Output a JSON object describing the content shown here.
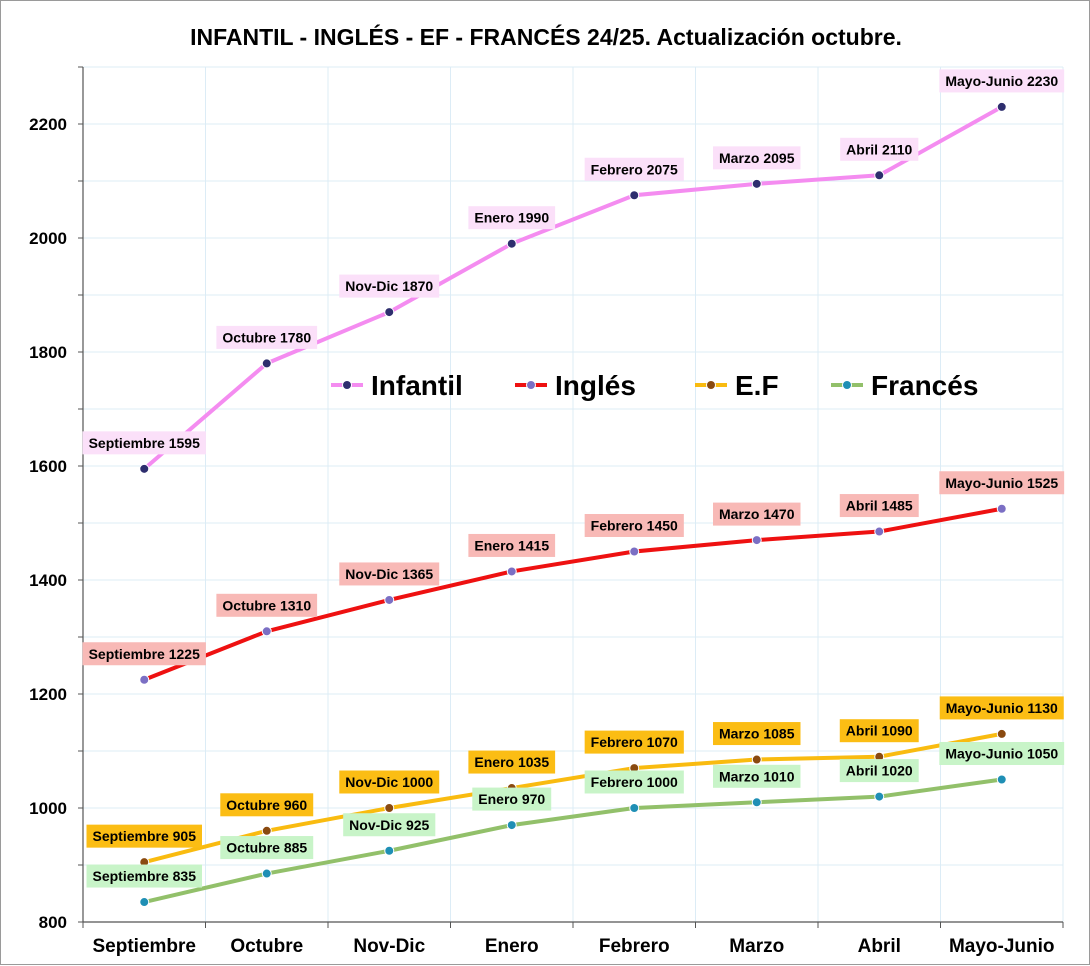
{
  "chart_data": {
    "type": "line",
    "title": "INFANTIL - INGLÉS - EF - FRANCÉS 24/25. Actualización octubre.",
    "xlabel": "",
    "ylabel": "",
    "categories": [
      "Septiembre",
      "Octubre",
      "Nov-Dic",
      "Enero",
      "Febrero",
      "Marzo",
      "Abril",
      "Mayo-Junio"
    ],
    "ylim": [
      800,
      2300
    ],
    "yticks": [
      800,
      1000,
      1200,
      1400,
      1600,
      1800,
      2000,
      2200
    ],
    "grid": true,
    "legend_position": "center",
    "series": [
      {
        "name": "Infantil",
        "values": [
          1595,
          1780,
          1870,
          1990,
          2075,
          2095,
          2110,
          2230
        ],
        "labels": [
          "Septiembre 1595",
          "Octubre 1780",
          "Nov-Dic 1870",
          "Enero 1990",
          "Febrero 2075",
          "Marzo 2095",
          "Abril 2110",
          "Mayo-Junio 2230"
        ],
        "line_color": "#f48cf0",
        "label_bg": "#fbe0f9",
        "marker_color": "#2e2e6e"
      },
      {
        "name": "Inglés",
        "values": [
          1225,
          1310,
          1365,
          1415,
          1450,
          1470,
          1485,
          1525
        ],
        "labels": [
          "Septiembre 1225",
          "Octubre 1310",
          "Nov-Dic 1365",
          "Enero 1415",
          "Febrero 1450",
          "Marzo 1470",
          "Abril 1485",
          "Mayo-Junio 1525"
        ],
        "line_color": "#ee1111",
        "label_bg": "#f8b9b6",
        "marker_color": "#7b6fc4"
      },
      {
        "name": "E.F",
        "values": [
          905,
          960,
          1000,
          1035,
          1070,
          1085,
          1090,
          1130
        ],
        "labels": [
          "Septiembre 905",
          "Octubre 960",
          "Nov-Dic 1000",
          "Enero 1035",
          "Febrero 1070",
          "Marzo 1085",
          "Abril 1090",
          "Mayo-Junio 1130"
        ],
        "line_color": "#f9bb10",
        "label_bg": "#fbbd14",
        "marker_color": "#8a4a10"
      },
      {
        "name": "Francés",
        "values": [
          835,
          885,
          925,
          970,
          1000,
          1010,
          1020,
          1050
        ],
        "labels": [
          "Septiembre 835",
          "Octubre 885",
          "Nov-Dic 925",
          "Enero 970",
          "Febrero 1000",
          "Marzo 1010",
          "Abril 1020",
          "Mayo-Junio 1050"
        ],
        "line_color": "#92c06a",
        "label_bg": "#c8f4c8",
        "marker_color": "#1f8fb5"
      }
    ]
  }
}
